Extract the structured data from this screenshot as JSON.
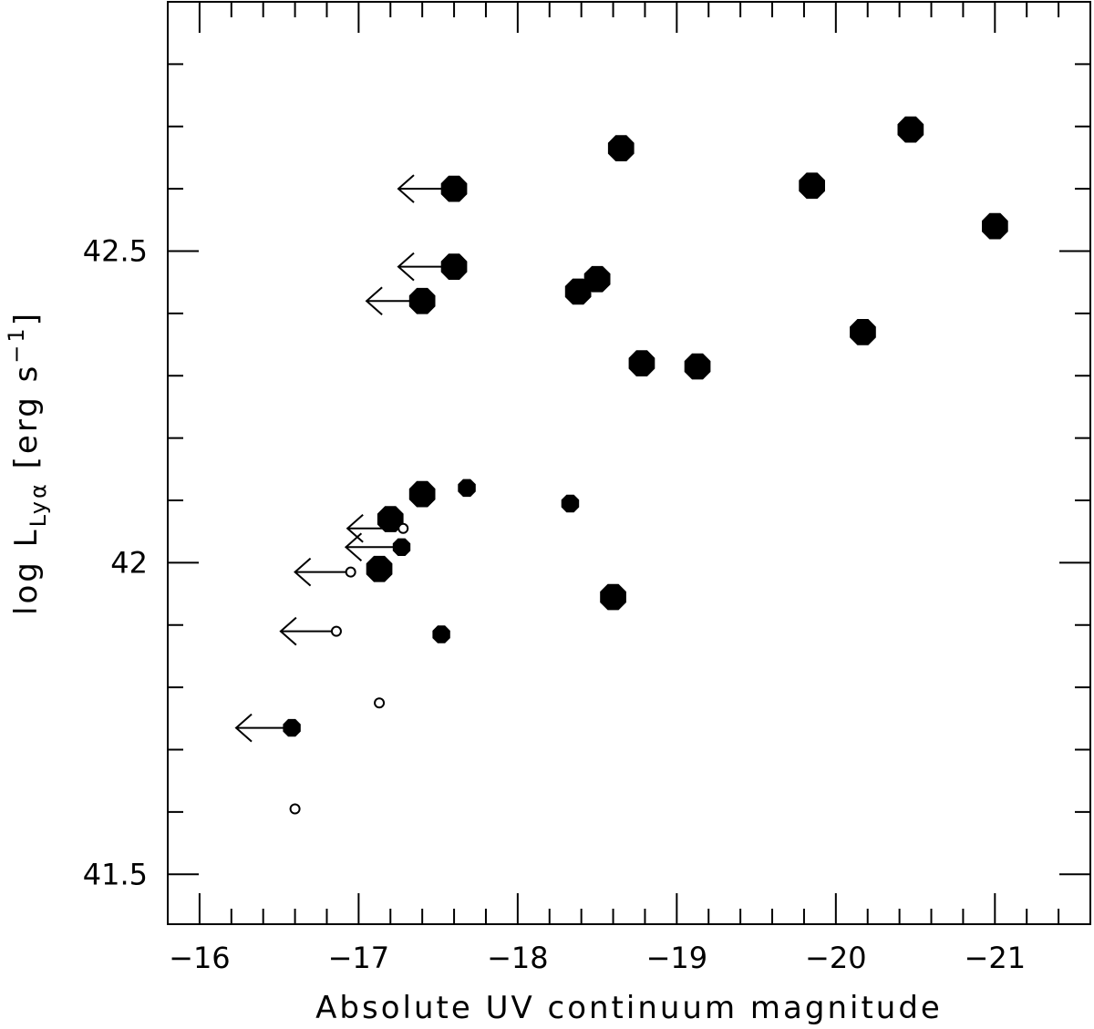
{
  "chart_data": {
    "type": "scatter",
    "xlabel": "Absolute UV continuum magnitude",
    "ylabel_parts": {
      "main": "log L",
      "sub": "Lyα",
      "units_pre": " [erg s",
      "sup": "−1",
      "units_post": "]"
    },
    "xlim": [
      -15.8,
      -21.6
    ],
    "ylim": [
      41.42,
      42.9
    ],
    "x_ticks": [
      -16,
      -17,
      -18,
      -19,
      -20,
      -21
    ],
    "x_tick_labels": [
      "−16",
      "−17",
      "−18",
      "−19",
      "−20",
      "−21"
    ],
    "x_minor_step": 0.2,
    "y_ticks": [
      41.5,
      42,
      42.5
    ],
    "y_tick_labels": [
      "41.5",
      "42",
      "42.5"
    ],
    "y_minor_step": 0.1,
    "grid": false,
    "legend": "none",
    "series": [
      {
        "marker": "large-filled-octagon",
        "points": [
          {
            "x": -17.6,
            "y": 42.6,
            "upper_limit_x": true
          },
          {
            "x": -17.6,
            "y": 42.475,
            "upper_limit_x": true
          },
          {
            "x": -17.4,
            "y": 42.42,
            "upper_limit_x": true
          },
          {
            "x": -18.65,
            "y": 42.665
          },
          {
            "x": -18.38,
            "y": 42.435
          },
          {
            "x": -18.5,
            "y": 42.455
          },
          {
            "x": -18.78,
            "y": 42.32
          },
          {
            "x": -19.13,
            "y": 42.315
          },
          {
            "x": -19.85,
            "y": 42.605
          },
          {
            "x": -20.47,
            "y": 42.695
          },
          {
            "x": -20.17,
            "y": 42.37
          },
          {
            "x": -21.0,
            "y": 42.54
          },
          {
            "x": -17.4,
            "y": 42.11
          },
          {
            "x": -17.2,
            "y": 42.07
          },
          {
            "x": -17.13,
            "y": 41.99
          },
          {
            "x": -18.6,
            "y": 41.945
          }
        ]
      },
      {
        "marker": "small-filled-octagon",
        "points": [
          {
            "x": -17.68,
            "y": 42.12
          },
          {
            "x": -18.33,
            "y": 42.095
          },
          {
            "x": -17.27,
            "y": 42.025,
            "upper_limit_x": true
          },
          {
            "x": -17.52,
            "y": 41.885
          },
          {
            "x": -16.58,
            "y": 41.735,
            "upper_limit_x": true
          }
        ]
      },
      {
        "marker": "open-circle",
        "points": [
          {
            "x": -17.28,
            "y": 42.055,
            "upper_limit_x": true
          },
          {
            "x": -16.95,
            "y": 41.985,
            "upper_limit_x": true
          },
          {
            "x": -16.86,
            "y": 41.89,
            "upper_limit_x": true
          },
          {
            "x": -17.13,
            "y": 41.775
          },
          {
            "x": -16.6,
            "y": 41.605
          }
        ]
      }
    ],
    "limit_arrow_length_mag": 0.35,
    "colors": {
      "ink": "#000000",
      "background": "#ffffff"
    }
  }
}
